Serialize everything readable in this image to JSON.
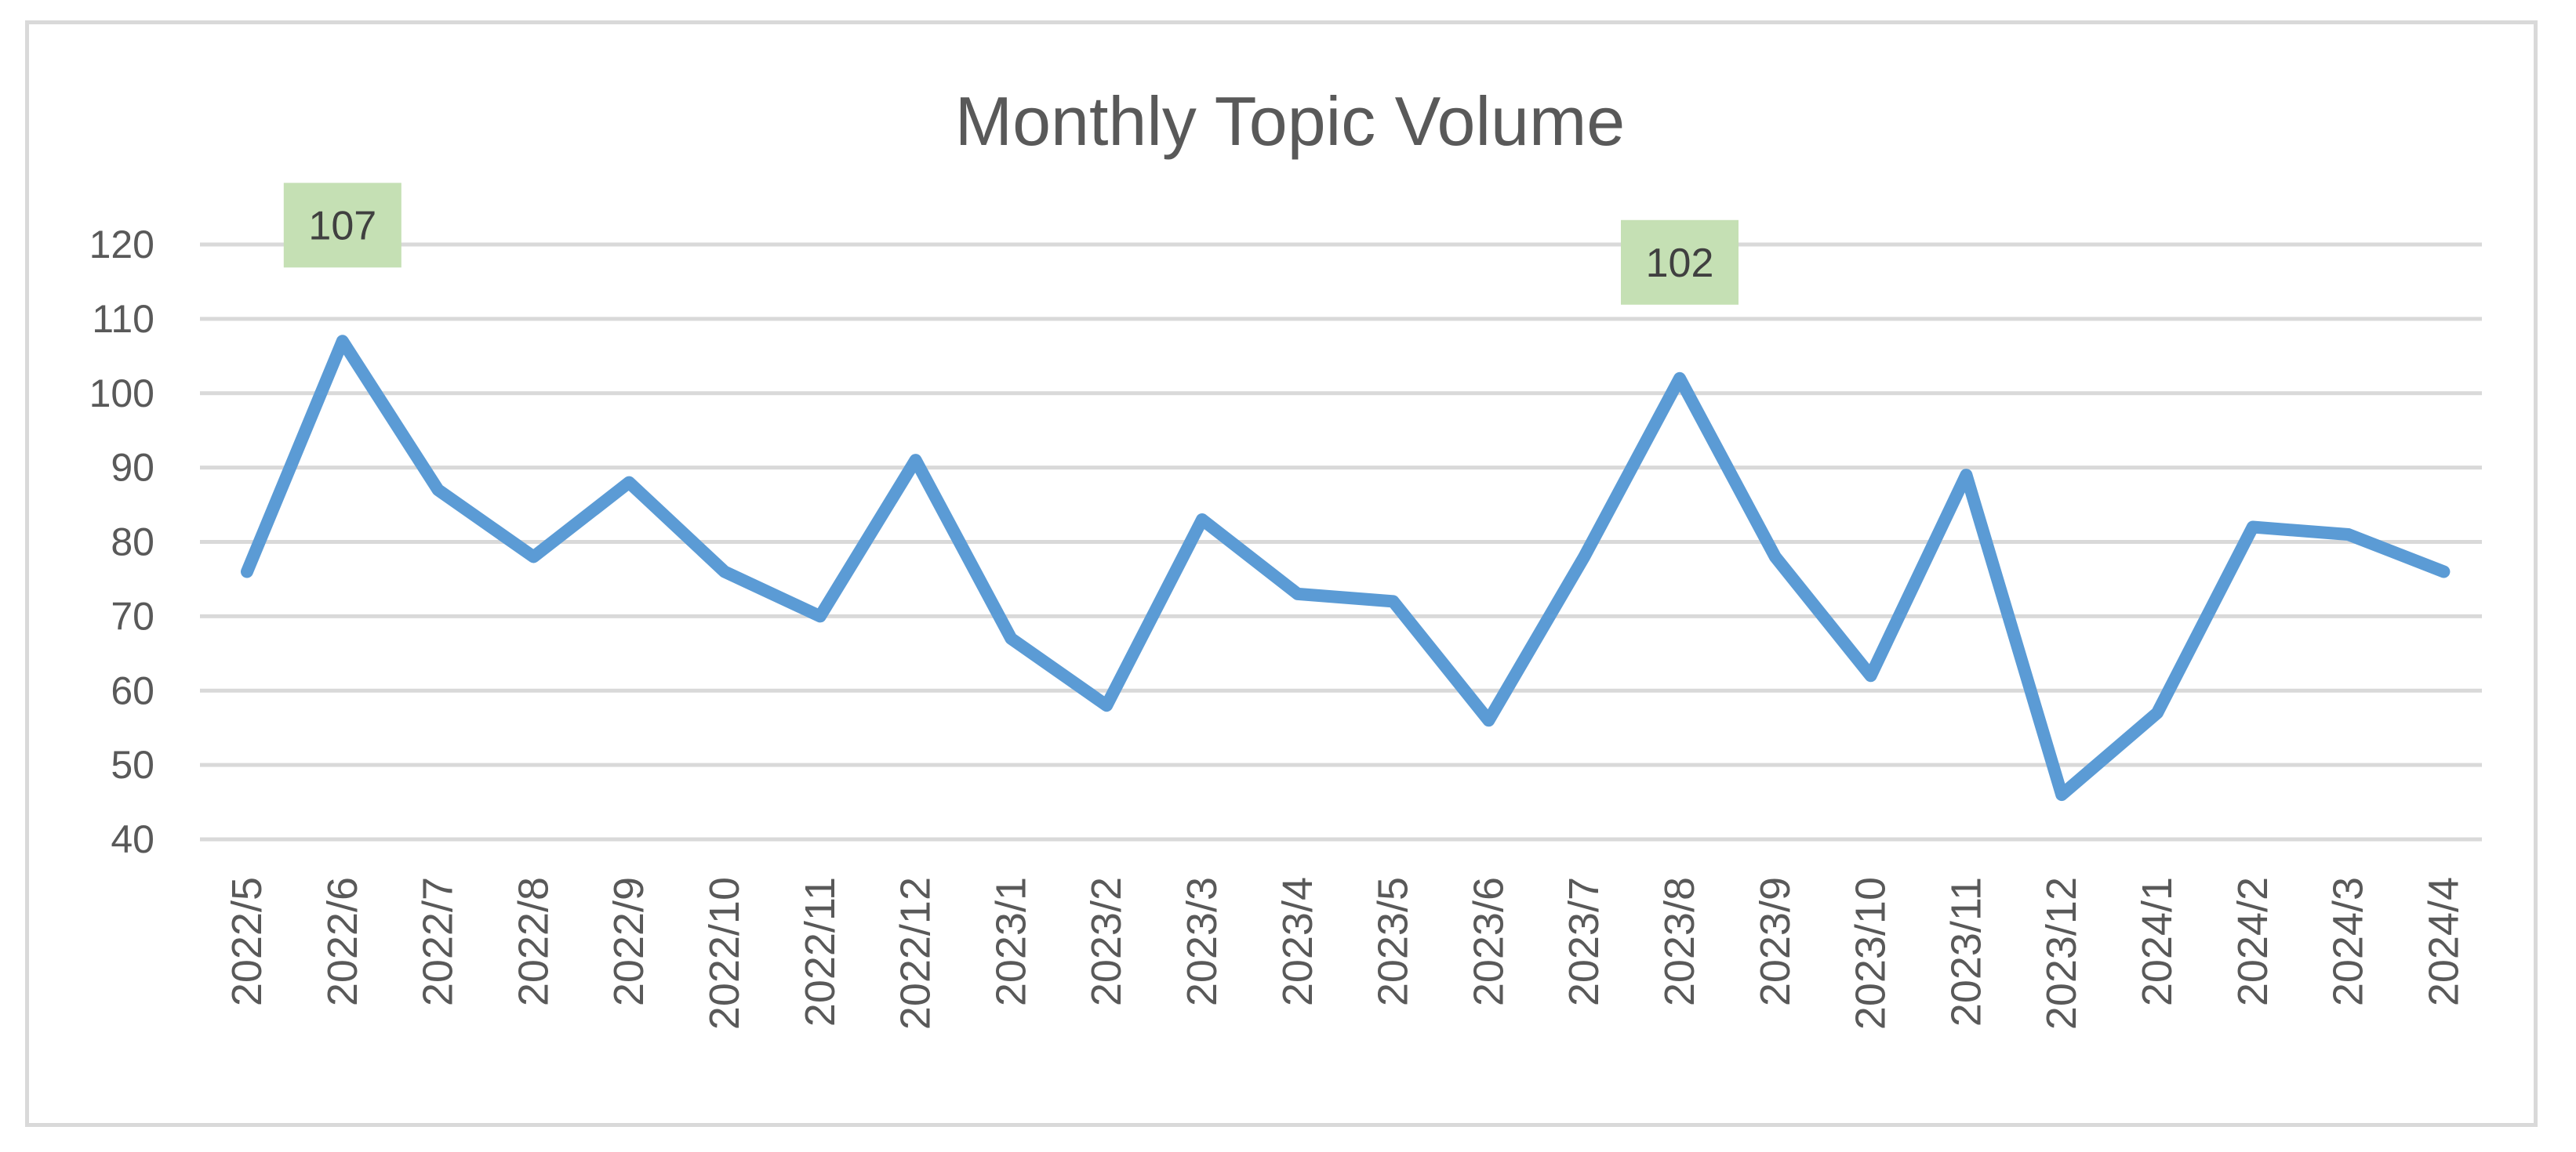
{
  "chart_data": {
    "type": "line",
    "title": "Monthly Topic Volume",
    "xlabel": "",
    "ylabel": "",
    "categories": [
      "2022/5",
      "2022/6",
      "2022/7",
      "2022/8",
      "2022/9",
      "2022/10",
      "2022/11",
      "2022/12",
      "2023/1",
      "2023/2",
      "2023/3",
      "2023/4",
      "2023/5",
      "2023/6",
      "2023/7",
      "2023/8",
      "2023/9",
      "2023/10",
      "2023/11",
      "2023/12",
      "2024/1",
      "2024/2",
      "2024/3",
      "2024/4"
    ],
    "series": [
      {
        "values": [
          76,
          107,
          87,
          78,
          88,
          76,
          70,
          91,
          67,
          58,
          83,
          73,
          72,
          56,
          78,
          102,
          78,
          62,
          89,
          46,
          57,
          82,
          81,
          76
        ],
        "color": "#5b9bd5"
      }
    ],
    "ylim": [
      40,
      120
    ],
    "yticks": [
      40,
      50,
      60,
      70,
      80,
      90,
      100,
      110,
      120
    ],
    "grid": true,
    "legend": "none",
    "data_labels": [
      {
        "category": "2022/6",
        "value": 107,
        "text": "107"
      },
      {
        "category": "2023/8",
        "value": 102,
        "text": "102"
      }
    ],
    "data_label_color": "#c5e0b4"
  }
}
